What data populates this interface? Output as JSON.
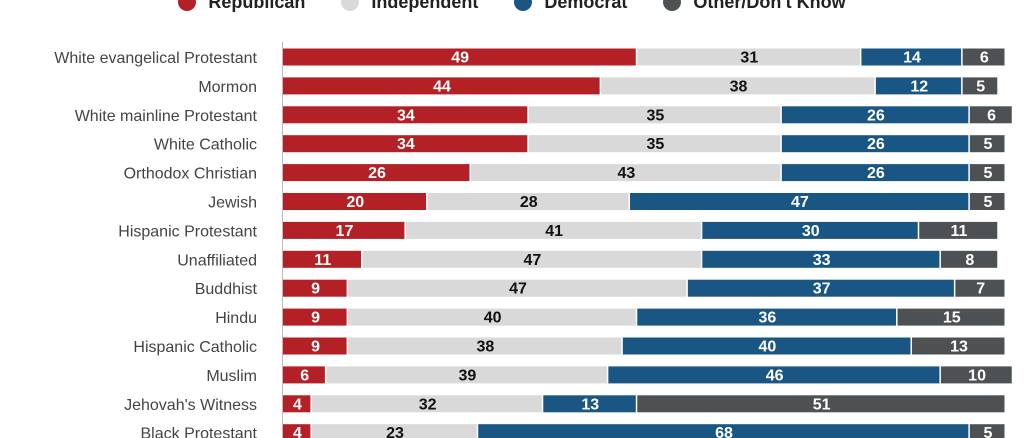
{
  "chart_data": {
    "type": "bar",
    "orientation": "horizontal",
    "stacked": true,
    "categories": [
      "White evangelical Protestant",
      "Mormon",
      "White mainline Protestant",
      "White Catholic",
      "Orthodox Christian",
      "Jewish",
      "Hispanic Protestant",
      "Unaffiliated",
      "Buddhist",
      "Hindu",
      "Hispanic Catholic",
      "Muslim",
      "Jehovah's Witness",
      "Black Protestant"
    ],
    "series": [
      {
        "name": "Republican",
        "color": "#b32025",
        "label_color": "#ffffff",
        "values": [
          49,
          44,
          34,
          34,
          26,
          20,
          17,
          11,
          9,
          9,
          9,
          6,
          4,
          4
        ]
      },
      {
        "name": "Independent",
        "color": "#d9d9d9",
        "label_color": "#111111",
        "values": [
          31,
          38,
          35,
          35,
          43,
          28,
          41,
          47,
          47,
          40,
          38,
          39,
          32,
          23
        ]
      },
      {
        "name": "Democrat",
        "color": "#1a5683",
        "label_color": "#ffffff",
        "values": [
          14,
          12,
          26,
          26,
          26,
          47,
          30,
          33,
          37,
          36,
          40,
          46,
          13,
          68
        ]
      },
      {
        "name": "Other/Don't Know",
        "color": "#4d5153",
        "label_color": "#ffffff",
        "values": [
          6,
          5,
          6,
          5,
          5,
          5,
          11,
          8,
          7,
          15,
          13,
          10,
          51,
          5
        ]
      }
    ],
    "legend_position": "top",
    "grid": false,
    "xlim": [
      0,
      100
    ]
  }
}
